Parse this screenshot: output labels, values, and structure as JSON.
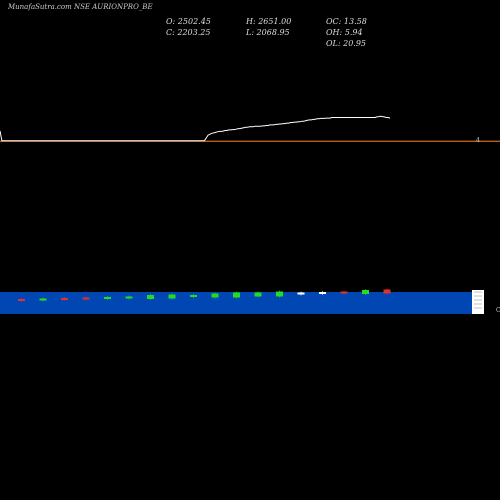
{
  "title": "MunafaSutra.com NSE AURIONPRO_BE",
  "ohlc": {
    "open": "O: 2502.45",
    "high": "H: 2651.00",
    "oc": "OC: 13.58",
    "close": "C: 2203.25",
    "low": "L: 2068.95",
    "oh": "OH: 5.94",
    "ol": "OL: 20.95"
  },
  "colors": {
    "background": "#000000",
    "price_line": "#ffffff",
    "baseline": "#d2691e",
    "volume_band": "#0047b3",
    "up_candle": "#22dd22",
    "down_candle": "#e03030",
    "neutral_candle": "#ffffff"
  },
  "chart_data": {
    "type": "line",
    "title": "MunafaSutra.com NSE AURIONPRO_BE",
    "series": [
      {
        "values": [
          2203,
          2150,
          2150,
          2150,
          2150,
          2150,
          2150,
          2150,
          2150,
          2150,
          2150,
          2150,
          2150,
          2150,
          2150,
          2150,
          2150,
          2150,
          2150,
          2150,
          2150,
          2150,
          2150,
          2150,
          2150,
          2150,
          2150,
          2150,
          2150,
          2150,
          2150,
          2150,
          2150,
          2150,
          2150,
          2150,
          2150,
          2150,
          2150,
          2150,
          2150,
          2150,
          2150,
          2150,
          2150,
          2150,
          2150,
          2150,
          2150,
          2150,
          2150,
          2150,
          2150,
          2150,
          2150,
          2150,
          2150,
          2150,
          2150,
          2150,
          2150,
          2150,
          2150,
          2150,
          2150,
          2150,
          2150,
          2150,
          2150,
          2150,
          2150,
          2150,
          2150,
          2150,
          2150,
          2150,
          2150,
          2150,
          2150,
          2150,
          2150,
          2150,
          2150,
          2150,
          2150,
          2150,
          2150,
          2150,
          2150,
          2150,
          2150,
          2150,
          2150,
          2150,
          2150,
          2150,
          2150,
          2150,
          2150,
          2150,
          2150,
          2150,
          2150,
          2150,
          2150,
          2150,
          2150,
          2150,
          2150,
          2150,
          2165,
          2180,
          2185,
          2190,
          2192,
          2195,
          2198,
          2200,
          2200,
          2202,
          2205,
          2205,
          2208,
          2208,
          2210,
          2210,
          2212,
          2215,
          2215,
          2218,
          2220,
          2222,
          2222,
          2225,
          2225,
          2225,
          2228,
          2228,
          2228,
          2228,
          2230,
          2230,
          2232,
          2232,
          2235,
          2235,
          2235,
          2238,
          2238,
          2240,
          2240,
          2242,
          2242,
          2245,
          2245,
          2248,
          2248,
          2250,
          2250,
          2252,
          2252,
          2255,
          2255,
          2258,
          2260,
          2262,
          2262,
          2265,
          2265,
          2268,
          2268,
          2270,
          2270,
          2270,
          2272,
          2272,
          2272,
          2275,
          2275,
          2275,
          2275,
          2275,
          2275,
          2275,
          2275,
          2275,
          2275,
          2275,
          2275,
          2275,
          2275,
          2275,
          2275,
          2275,
          2275,
          2275,
          2275,
          2275,
          2275,
          2275,
          2275,
          2278,
          2280,
          2282,
          2280,
          2278,
          2275,
          2275,
          2272
        ]
      }
    ],
    "baseline": 2150,
    "right_marker": "4",
    "volume_candles": [
      {
        "type": "down",
        "size": 1
      },
      {
        "type": "up",
        "size": 1
      },
      {
        "type": "down",
        "size": 1
      },
      {
        "type": "down",
        "size": 1
      },
      {
        "type": "up",
        "size": 1
      },
      {
        "type": "up",
        "size": 1
      },
      {
        "type": "up",
        "size": 2
      },
      {
        "type": "up",
        "size": 2
      },
      {
        "type": "up",
        "size": 1
      },
      {
        "type": "up",
        "size": 2
      },
      {
        "type": "up",
        "size": 3
      },
      {
        "type": "up",
        "size": 2
      },
      {
        "type": "up",
        "size": 3
      },
      {
        "type": "neutral",
        "size": 1
      },
      {
        "type": "neutral",
        "size": 1
      },
      {
        "type": "down",
        "size": 1
      },
      {
        "type": "up",
        "size": 2
      },
      {
        "type": "down",
        "size": 2
      }
    ],
    "right_label": "C"
  }
}
